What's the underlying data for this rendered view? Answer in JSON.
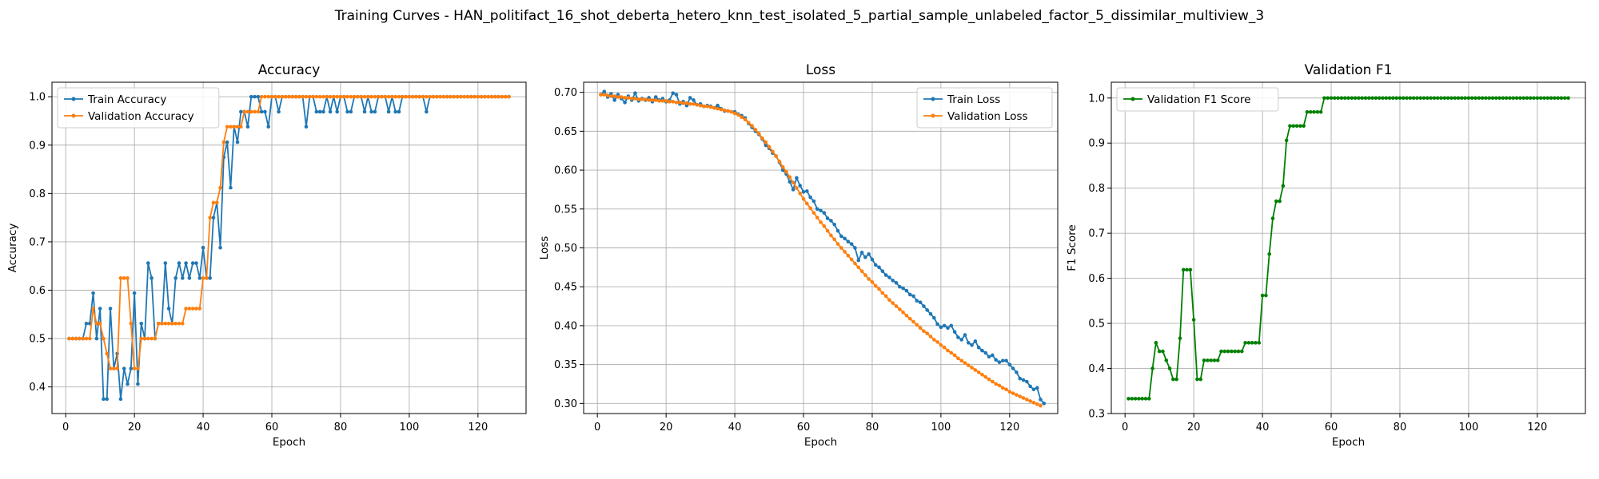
{
  "suptitle": "Training Curves - HAN_politifact_16_shot_deberta_hetero_knn_test_isolated_5_partial_sample_unlabeled_factor_5_dissimilar_multiview_3",
  "colors": {
    "train": "#1f77b4",
    "validation": "#ff7f0e",
    "f1": "#008000",
    "grid": "#b0b0b0",
    "spine": "#000000"
  },
  "chart_data": [
    {
      "type": "line",
      "title": "Accuracy",
      "xlabel": "Epoch",
      "ylabel": "Accuracy",
      "xlim": [
        -4,
        134
      ],
      "ylim": [
        0.345,
        1.03
      ],
      "xticks": [
        0,
        20,
        40,
        60,
        80,
        100,
        120
      ],
      "yticks": [
        0.4,
        0.5,
        0.6,
        0.7,
        0.8,
        0.9,
        1.0
      ],
      "yticks_labels": [
        "0.4",
        "0.5",
        "0.6",
        "0.7",
        "0.8",
        "0.9",
        "1.0"
      ],
      "grid": true,
      "legend": "upper-left",
      "x_start": 1,
      "series": [
        {
          "name": "Train Accuracy",
          "color": "#1f77b4",
          "values": [
            0.5,
            0.5,
            0.5,
            0.5,
            0.5,
            0.531,
            0.531,
            0.594,
            0.5,
            0.562,
            0.375,
            0.375,
            0.562,
            0.438,
            0.469,
            0.375,
            0.438,
            0.406,
            0.438,
            0.594,
            0.406,
            0.531,
            0.5,
            0.656,
            0.625,
            0.5,
            0.531,
            0.531,
            0.656,
            0.562,
            0.531,
            0.625,
            0.656,
            0.625,
            0.656,
            0.625,
            0.656,
            0.656,
            0.625,
            0.688,
            0.625,
            0.625,
            0.75,
            0.781,
            0.688,
            0.875,
            0.906,
            0.812,
            0.938,
            0.906,
            0.969,
            0.969,
            0.938,
            1.0,
            1.0,
            1.0,
            0.969,
            0.969,
            0.938,
            1.0,
            1.0,
            0.969,
            1.0,
            1.0,
            1.0,
            1.0,
            1.0,
            1.0,
            1.0,
            0.938,
            1.0,
            1.0,
            0.969,
            0.969,
            0.969,
            1.0,
            0.969,
            1.0,
            0.969,
            1.0,
            1.0,
            0.969,
            0.969,
            1.0,
            1.0,
            1.0,
            0.969,
            1.0,
            0.969,
            0.969,
            1.0,
            1.0,
            1.0,
            0.969,
            1.0,
            0.969,
            0.969,
            1.0,
            1.0,
            1.0,
            1.0,
            1.0,
            1.0,
            1.0,
            0.969,
            1.0,
            1.0,
            1.0,
            1.0,
            1.0,
            1.0,
            1.0,
            1.0,
            1.0,
            1.0,
            1.0,
            1.0,
            1.0,
            1.0,
            1.0,
            1.0,
            1.0,
            1.0,
            1.0,
            1.0,
            1.0,
            1.0,
            1.0,
            1.0
          ]
        },
        {
          "name": "Validation Accuracy",
          "color": "#ff7f0e",
          "values": [
            0.5,
            0.5,
            0.5,
            0.5,
            0.5,
            0.5,
            0.5,
            0.562,
            0.531,
            0.531,
            0.5,
            0.469,
            0.438,
            0.438,
            0.438,
            0.625,
            0.625,
            0.625,
            0.531,
            0.438,
            0.438,
            0.5,
            0.5,
            0.5,
            0.5,
            0.5,
            0.531,
            0.531,
            0.531,
            0.531,
            0.531,
            0.531,
            0.531,
            0.531,
            0.562,
            0.562,
            0.562,
            0.562,
            0.562,
            0.625,
            0.625,
            0.75,
            0.781,
            0.781,
            0.812,
            0.906,
            0.938,
            0.938,
            0.938,
            0.938,
            0.938,
            0.969,
            0.969,
            0.969,
            0.969,
            0.969,
            1.0,
            1.0,
            1.0,
            1.0,
            1.0,
            1.0,
            1.0,
            1.0,
            1.0,
            1.0,
            1.0,
            1.0,
            1.0,
            1.0,
            1.0,
            1.0,
            1.0,
            1.0,
            1.0,
            1.0,
            1.0,
            1.0,
            1.0,
            1.0,
            1.0,
            1.0,
            1.0,
            1.0,
            1.0,
            1.0,
            1.0,
            1.0,
            1.0,
            1.0,
            1.0,
            1.0,
            1.0,
            1.0,
            1.0,
            1.0,
            1.0,
            1.0,
            1.0,
            1.0,
            1.0,
            1.0,
            1.0,
            1.0,
            1.0,
            1.0,
            1.0,
            1.0,
            1.0,
            1.0,
            1.0,
            1.0,
            1.0,
            1.0,
            1.0,
            1.0,
            1.0,
            1.0,
            1.0,
            1.0,
            1.0,
            1.0,
            1.0,
            1.0,
            1.0,
            1.0,
            1.0,
            1.0,
            1.0
          ]
        }
      ]
    },
    {
      "type": "line",
      "title": "Loss",
      "xlabel": "Epoch",
      "ylabel": "Loss",
      "xlim": [
        -4,
        134
      ],
      "ylim": [
        0.287,
        0.713
      ],
      "xticks": [
        0,
        20,
        40,
        60,
        80,
        100,
        120
      ],
      "yticks": [
        0.3,
        0.35,
        0.4,
        0.45,
        0.5,
        0.55,
        0.6,
        0.65,
        0.7
      ],
      "yticks_labels": [
        "0.30",
        "0.35",
        "0.40",
        "0.45",
        "0.50",
        "0.55",
        "0.60",
        "0.65",
        "0.70"
      ],
      "grid": true,
      "legend": "upper-right",
      "x_start": 1,
      "series": [
        {
          "name": "Train Loss",
          "color": "#1f77b4",
          "values": [
            0.697,
            0.701,
            0.694,
            0.698,
            0.69,
            0.697,
            0.692,
            0.687,
            0.695,
            0.69,
            0.699,
            0.689,
            0.692,
            0.69,
            0.693,
            0.688,
            0.694,
            0.69,
            0.692,
            0.688,
            0.69,
            0.699,
            0.697,
            0.685,
            0.688,
            0.683,
            0.693,
            0.69,
            0.684,
            0.685,
            0.682,
            0.683,
            0.682,
            0.68,
            0.683,
            0.679,
            0.676,
            0.676,
            0.675,
            0.675,
            0.672,
            0.67,
            0.667,
            0.66,
            0.655,
            0.65,
            0.646,
            0.64,
            0.632,
            0.628,
            0.622,
            0.618,
            0.61,
            0.6,
            0.595,
            0.585,
            0.575,
            0.59,
            0.58,
            0.572,
            0.573,
            0.565,
            0.56,
            0.55,
            0.548,
            0.545,
            0.538,
            0.535,
            0.53,
            0.522,
            0.515,
            0.512,
            0.508,
            0.505,
            0.5,
            0.484,
            0.494,
            0.488,
            0.492,
            0.485,
            0.478,
            0.475,
            0.47,
            0.465,
            0.462,
            0.458,
            0.455,
            0.45,
            0.448,
            0.445,
            0.44,
            0.438,
            0.432,
            0.43,
            0.425,
            0.42,
            0.415,
            0.41,
            0.402,
            0.398,
            0.4,
            0.397,
            0.4,
            0.392,
            0.385,
            0.382,
            0.388,
            0.378,
            0.375,
            0.38,
            0.372,
            0.368,
            0.365,
            0.36,
            0.362,
            0.356,
            0.353,
            0.355,
            0.355,
            0.35,
            0.345,
            0.34,
            0.332,
            0.33,
            0.328,
            0.322,
            0.318,
            0.32,
            0.305,
            0.3
          ]
        },
        {
          "name": "Validation Loss",
          "color": "#ff7f0e",
          "values": [
            0.697,
            0.697,
            0.696,
            0.695,
            0.695,
            0.694,
            0.694,
            0.693,
            0.693,
            0.692,
            0.692,
            0.691,
            0.691,
            0.691,
            0.69,
            0.69,
            0.69,
            0.689,
            0.689,
            0.689,
            0.688,
            0.688,
            0.687,
            0.687,
            0.686,
            0.686,
            0.685,
            0.685,
            0.684,
            0.683,
            0.682,
            0.682,
            0.681,
            0.68,
            0.679,
            0.678,
            0.677,
            0.676,
            0.675,
            0.673,
            0.671,
            0.668,
            0.665,
            0.661,
            0.657,
            0.652,
            0.647,
            0.641,
            0.636,
            0.63,
            0.624,
            0.618,
            0.611,
            0.604,
            0.598,
            0.591,
            0.584,
            0.577,
            0.57,
            0.563,
            0.557,
            0.551,
            0.545,
            0.539,
            0.533,
            0.528,
            0.522,
            0.516,
            0.511,
            0.505,
            0.5,
            0.495,
            0.49,
            0.485,
            0.48,
            0.475,
            0.47,
            0.465,
            0.46,
            0.456,
            0.451,
            0.447,
            0.442,
            0.438,
            0.433,
            0.429,
            0.425,
            0.421,
            0.417,
            0.413,
            0.409,
            0.405,
            0.401,
            0.397,
            0.393,
            0.39,
            0.386,
            0.382,
            0.379,
            0.375,
            0.372,
            0.368,
            0.365,
            0.362,
            0.358,
            0.355,
            0.352,
            0.349,
            0.346,
            0.343,
            0.34,
            0.337,
            0.334,
            0.331,
            0.328,
            0.325,
            0.323,
            0.32,
            0.318,
            0.315,
            0.313,
            0.311,
            0.309,
            0.307,
            0.305,
            0.303,
            0.301,
            0.299,
            0.297
          ]
        }
      ]
    },
    {
      "type": "line",
      "title": "Validation F1",
      "xlabel": "Epoch",
      "ylabel": "F1 Score",
      "xlim": [
        -4,
        134
      ],
      "ylim": [
        0.3,
        1.035
      ],
      "xticks": [
        0,
        20,
        40,
        60,
        80,
        100,
        120
      ],
      "yticks": [
        0.3,
        0.4,
        0.5,
        0.6,
        0.7,
        0.8,
        0.9,
        1.0
      ],
      "yticks_labels": [
        "0.3",
        "0.4",
        "0.5",
        "0.6",
        "0.7",
        "0.8",
        "0.9",
        "1.0"
      ],
      "grid": true,
      "legend": "upper-left",
      "x_start": 1,
      "series": [
        {
          "name": "Validation F1 Score",
          "color": "#008000",
          "values": [
            0.333,
            0.333,
            0.333,
            0.333,
            0.333,
            0.333,
            0.333,
            0.4,
            0.457,
            0.438,
            0.438,
            0.418,
            0.4,
            0.376,
            0.376,
            0.467,
            0.619,
            0.619,
            0.619,
            0.508,
            0.376,
            0.376,
            0.418,
            0.418,
            0.418,
            0.418,
            0.418,
            0.438,
            0.438,
            0.438,
            0.438,
            0.438,
            0.438,
            0.438,
            0.457,
            0.457,
            0.457,
            0.457,
            0.457,
            0.562,
            0.562,
            0.654,
            0.733,
            0.771,
            0.771,
            0.805,
            0.906,
            0.938,
            0.938,
            0.938,
            0.938,
            0.938,
            0.969,
            0.969,
            0.969,
            0.969,
            0.969,
            1.0,
            1.0,
            1.0,
            1.0,
            1.0,
            1.0,
            1.0,
            1.0,
            1.0,
            1.0,
            1.0,
            1.0,
            1.0,
            1.0,
            1.0,
            1.0,
            1.0,
            1.0,
            1.0,
            1.0,
            1.0,
            1.0,
            1.0,
            1.0,
            1.0,
            1.0,
            1.0,
            1.0,
            1.0,
            1.0,
            1.0,
            1.0,
            1.0,
            1.0,
            1.0,
            1.0,
            1.0,
            1.0,
            1.0,
            1.0,
            1.0,
            1.0,
            1.0,
            1.0,
            1.0,
            1.0,
            1.0,
            1.0,
            1.0,
            1.0,
            1.0,
            1.0,
            1.0,
            1.0,
            1.0,
            1.0,
            1.0,
            1.0,
            1.0,
            1.0,
            1.0,
            1.0,
            1.0,
            1.0,
            1.0,
            1.0,
            1.0,
            1.0,
            1.0,
            1.0,
            1.0,
            1.0
          ]
        }
      ]
    }
  ]
}
